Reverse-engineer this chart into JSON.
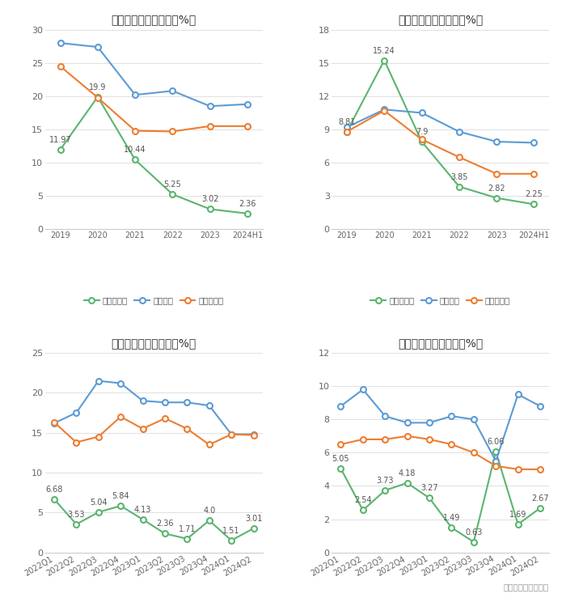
{
  "title_gross_annual": "历年毛利率变化情况（%）",
  "title_net_annual": "历年净利率变化情况（%）",
  "title_gross_quarterly": "季度毛利率变化情况（%）",
  "title_net_quarterly": "季度净利率变化情况（%）",
  "footer": "数据来源：恒生聚源",
  "annual_x": [
    "2019",
    "2020",
    "2021",
    "2022",
    "2023",
    "2024H1"
  ],
  "gross_annual_company": [
    11.97,
    19.9,
    10.44,
    5.25,
    3.02,
    2.36
  ],
  "gross_annual_industry_avg": [
    28.0,
    27.4,
    20.2,
    20.8,
    18.5,
    18.8
  ],
  "gross_annual_industry_med": [
    24.5,
    19.8,
    14.8,
    14.7,
    15.5,
    15.5
  ],
  "net_annual_company": [
    8.81,
    15.24,
    7.9,
    3.85,
    2.82,
    2.25
  ],
  "net_annual_industry_avg": [
    9.2,
    10.8,
    10.5,
    8.8,
    7.9,
    7.8
  ],
  "net_annual_industry_med": [
    8.8,
    10.7,
    8.1,
    6.5,
    5.0,
    5.0
  ],
  "quarterly_x": [
    "2022Q1",
    "2022Q2",
    "2022Q3",
    "2022Q4",
    "2023Q1",
    "2023Q2",
    "2023Q3",
    "2023Q4",
    "2024Q1",
    "2024Q2"
  ],
  "gross_q_company": [
    6.68,
    3.53,
    5.04,
    5.84,
    4.13,
    2.36,
    1.71,
    4.0,
    1.51,
    3.01
  ],
  "gross_q_industry_avg": [
    16.2,
    17.5,
    21.5,
    21.2,
    19.0,
    18.8,
    18.8,
    18.4,
    14.8,
    14.8
  ],
  "gross_q_industry_med": [
    16.3,
    13.8,
    14.5,
    17.0,
    15.5,
    16.8,
    15.5,
    13.5,
    14.8,
    14.7
  ],
  "net_q_company": [
    5.05,
    2.54,
    3.73,
    4.18,
    3.27,
    1.49,
    0.63,
    6.06,
    1.69,
    2.67
  ],
  "net_q_industry_avg": [
    8.8,
    9.8,
    8.2,
    7.8,
    7.8,
    8.2,
    8.0,
    5.5,
    9.5,
    8.8
  ],
  "net_q_industry_med": [
    6.5,
    6.8,
    6.8,
    7.0,
    6.8,
    6.5,
    6.0,
    5.2,
    5.0,
    5.0
  ],
  "color_company": "#5ab56e",
  "color_industry_avg": "#5b9bd5",
  "color_industry_med": "#ed7d31",
  "bg_color": "#ffffff",
  "grid_color": "#e0e0e0",
  "legend_gross_company": "公司毛利率",
  "legend_net_company": "公司净利率",
  "legend_industry_avg": "行业均值",
  "legend_industry_med": "行业中位数"
}
